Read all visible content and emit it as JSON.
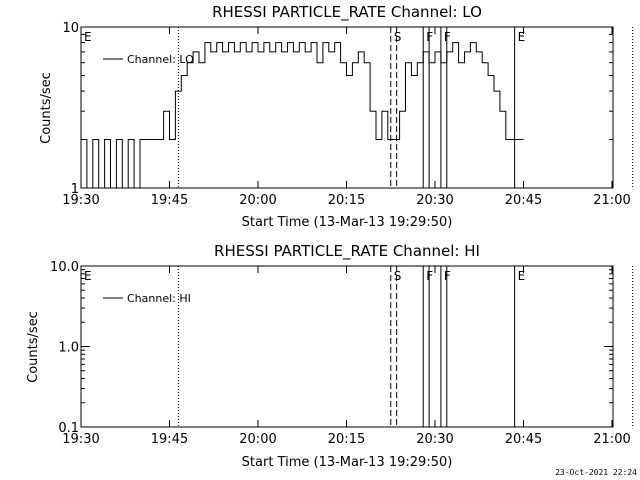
{
  "timestamp": "23-Oct-2021 22:24",
  "chart_data": [
    {
      "type": "line",
      "title": "RHESSI PARTICLE_RATE Channel: LO",
      "xlabel": "Start Time (13-Mar-13 19:29:50)",
      "ylabel": "Counts/sec",
      "y_scale": "log",
      "ylim": [
        1,
        10
      ],
      "y_ticks": [
        "1",
        "10"
      ],
      "x_range_minutes_after_1930": [
        0,
        75
      ],
      "x_ticks": [
        "19:30",
        "19:45",
        "20:00",
        "20:15",
        "20:30",
        "20:45",
        "21:00"
      ],
      "legend": "top-left",
      "series": [
        {
          "name": "Channel: LO",
          "x_minutes_after_1930": [
            0,
            1,
            2,
            3,
            4,
            5,
            6,
            7,
            8,
            9,
            10,
            11,
            12,
            13,
            14,
            15,
            16,
            17,
            18,
            19,
            20,
            21,
            22,
            23,
            24,
            25,
            26,
            27,
            28,
            29,
            30,
            31,
            32,
            33,
            34,
            35,
            36,
            37,
            38,
            39,
            40,
            41,
            42,
            43,
            44,
            45,
            46,
            47,
            48,
            49,
            50,
            51,
            52,
            53,
            54,
            55,
            56,
            57,
            58,
            59,
            60,
            61,
            62,
            63,
            64,
            65,
            66,
            67,
            68,
            69,
            70,
            71,
            72,
            73,
            74
          ],
          "y": [
            2,
            1,
            2,
            1,
            2,
            1,
            2,
            1,
            2,
            1,
            2,
            2,
            2,
            2,
            3,
            2,
            4,
            5,
            6,
            7,
            6,
            8,
            7,
            8,
            7,
            8,
            7,
            8,
            7,
            8,
            7,
            8,
            7,
            8,
            7,
            8,
            7,
            8,
            7,
            8,
            6,
            8,
            7,
            8,
            6,
            5,
            6,
            7,
            6,
            3,
            2,
            3,
            2,
            2,
            3,
            6,
            5,
            6,
            7,
            6,
            7,
            6,
            7,
            8,
            6,
            7,
            8,
            7,
            6,
            5,
            4,
            3,
            2,
            2,
            2
          ]
        }
      ],
      "vlines": [
        {
          "label": "E",
          "x_min": 0,
          "style": "dotted"
        },
        {
          "label": "",
          "x_min": 16.5,
          "style": "dotted"
        },
        {
          "label": "S",
          "x_min": 52.5,
          "style": "dashed"
        },
        {
          "label": "",
          "x_min": 53.5,
          "style": "dashed"
        },
        {
          "label": "F",
          "x_min": 58,
          "style": "solid"
        },
        {
          "label": "",
          "x_min": 59,
          "style": "solid"
        },
        {
          "label": "F",
          "x_min": 61,
          "style": "solid"
        },
        {
          "label": "",
          "x_min": 62,
          "style": "solid"
        },
        {
          "label": "E",
          "x_min": 73.5,
          "style": "solid"
        },
        {
          "label": "",
          "x_min": 93.5,
          "style": "dotted"
        }
      ]
    },
    {
      "type": "line",
      "title": "RHESSI PARTICLE_RATE Channel: HI",
      "xlabel": "Start Time (13-Mar-13 19:29:50)",
      "ylabel": "Counts/sec",
      "y_scale": "log",
      "ylim": [
        0.1,
        10
      ],
      "y_ticks": [
        "0.1",
        "1.0",
        "10.0"
      ],
      "x_range_minutes_after_1930": [
        0,
        75
      ],
      "x_ticks": [
        "19:30",
        "19:45",
        "20:00",
        "20:15",
        "20:30",
        "20:45",
        "21:00"
      ],
      "legend": "top-left",
      "series": [
        {
          "name": "Channel: HI",
          "x_minutes_after_1930": [],
          "y": []
        }
      ],
      "vlines": [
        {
          "label": "E",
          "x_min": 0,
          "style": "dotted"
        },
        {
          "label": "",
          "x_min": 16.5,
          "style": "dotted"
        },
        {
          "label": "S",
          "x_min": 52.5,
          "style": "dashed"
        },
        {
          "label": "",
          "x_min": 53.5,
          "style": "dashed"
        },
        {
          "label": "F",
          "x_min": 58,
          "style": "solid"
        },
        {
          "label": "",
          "x_min": 59,
          "style": "solid"
        },
        {
          "label": "F",
          "x_min": 61,
          "style": "solid"
        },
        {
          "label": "",
          "x_min": 62,
          "style": "solid"
        },
        {
          "label": "E",
          "x_min": 73.5,
          "style": "solid"
        },
        {
          "label": "",
          "x_min": 93.5,
          "style": "dotted"
        }
      ]
    }
  ]
}
